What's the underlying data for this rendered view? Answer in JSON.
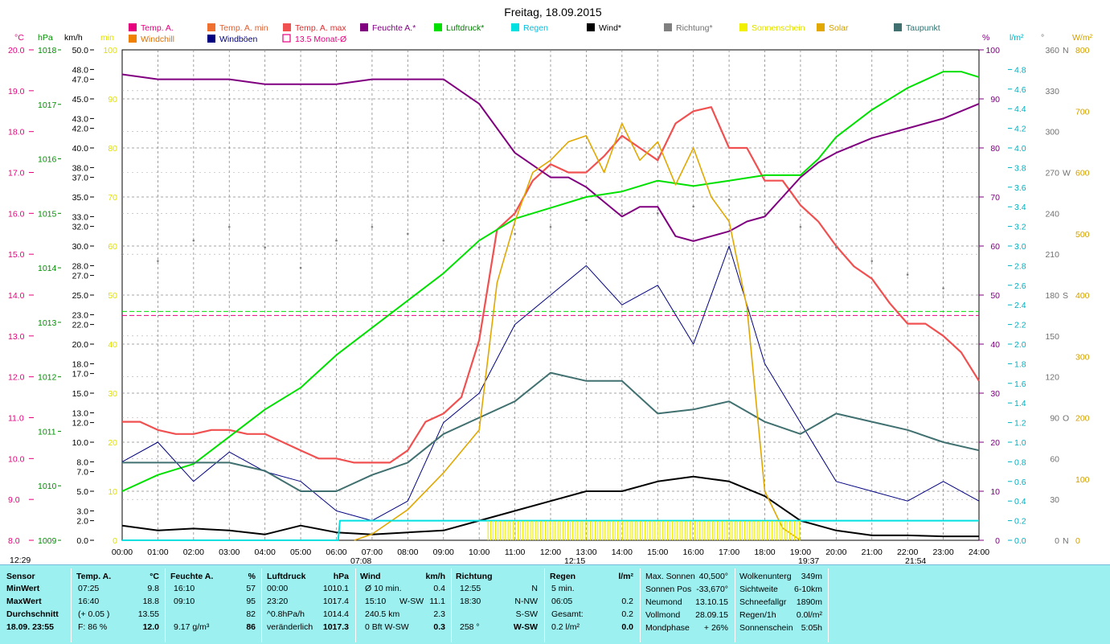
{
  "title": "Freitag, 18.09.2015",
  "legend": [
    {
      "label": "Temp. A.",
      "color": "#E6007E",
      "text_color": "#E6007E"
    },
    {
      "label": "Temp. A. min",
      "color": "#F07030",
      "text_color": "#E06030"
    },
    {
      "label": "Temp. A. max",
      "color": "#F05050",
      "text_color": "#E03030"
    },
    {
      "label": "Feuchte A.*",
      "color": "#800080",
      "text_color": "#800080"
    },
    {
      "label": "Luftdruck*",
      "color": "#00E000",
      "text_color": "#008000"
    },
    {
      "label": "Regen",
      "color": "#00E0E0",
      "text_color": "#00C0E0"
    },
    {
      "label": "Wind*",
      "color": "#000000",
      "text_color": "#000000"
    },
    {
      "label": "Richtung*",
      "color": "#808080",
      "text_color": "#707070"
    },
    {
      "label": "Sonnenschein",
      "color": "#F0F000",
      "text_color": "#E0E000"
    },
    {
      "label": "Solar",
      "color": "#E0A800",
      "text_color": "#D0A000"
    },
    {
      "label": "Taupunkt",
      "color": "#407070",
      "text_color": "#307070"
    },
    {
      "label": "Windchill",
      "color": "#F08000",
      "text_color": "#E07000"
    },
    {
      "label": "Windböen",
      "color": "#000080",
      "text_color": "#000080"
    },
    {
      "label": "13.5 Monat-Ø",
      "color": "#E6007E",
      "text_color": "#E6007E",
      "hollow": true
    }
  ],
  "axis_headers": {
    "temp": "°C",
    "pressure": "hPa",
    "wind": "km/h",
    "min": "min",
    "humidity": "%",
    "rain": "l/m²",
    "direction": "°",
    "solar": "W/m²"
  },
  "axes": {
    "temp_ticks": [
      "20.0",
      "19.0",
      "18.0",
      "17.0",
      "16.0",
      "15.0",
      "14.0",
      "13.0",
      "12.0",
      "11.0",
      "10.0",
      "9.0",
      "8.0"
    ],
    "pressure_ticks": [
      "1018",
      "1017",
      "1016",
      "1015",
      "1014",
      "1013",
      "1012",
      "1011",
      "1010",
      "1009"
    ],
    "wind_ticks": [
      {
        "v": 50.0,
        "l": "50.0"
      },
      {
        "v": 48.0,
        "l": "48.0"
      },
      {
        "v": 47.0,
        "l": "47.0"
      },
      {
        "v": 45.0,
        "l": "45.0"
      },
      {
        "v": 43.0,
        "l": "43.0"
      },
      {
        "v": 42.0,
        "l": "42.0"
      },
      {
        "v": 40.0,
        "l": "40.0"
      },
      {
        "v": 38.0,
        "l": "38.0"
      },
      {
        "v": 37.0,
        "l": "37.0"
      },
      {
        "v": 35.0,
        "l": "35.0"
      },
      {
        "v": 33.0,
        "l": "33.0"
      },
      {
        "v": 32.0,
        "l": "32.0"
      },
      {
        "v": 30.0,
        "l": "30.0"
      },
      {
        "v": 28.0,
        "l": "28.0"
      },
      {
        "v": 27.0,
        "l": "27.0"
      },
      {
        "v": 25.0,
        "l": "25.0"
      },
      {
        "v": 23.0,
        "l": "23.0"
      },
      {
        "v": 22.0,
        "l": "22.0"
      },
      {
        "v": 20.0,
        "l": "20.0"
      },
      {
        "v": 18.0,
        "l": "18.0"
      },
      {
        "v": 17.0,
        "l": "17.0"
      },
      {
        "v": 15.0,
        "l": "15.0"
      },
      {
        "v": 13.0,
        "l": "13.0"
      },
      {
        "v": 12.0,
        "l": "12.0"
      },
      {
        "v": 10.0,
        "l": "10.0"
      },
      {
        "v": 8.0,
        "l": "8.0"
      },
      {
        "v": 7.0,
        "l": "7.0"
      },
      {
        "v": 5.0,
        "l": "5.0"
      },
      {
        "v": 3.0,
        "l": "3.0"
      },
      {
        "v": 2.0,
        "l": "2.0"
      },
      {
        "v": 0.0,
        "l": "0.0"
      }
    ],
    "min_ticks": [
      "100",
      "90",
      "80",
      "70",
      "60",
      "50",
      "40",
      "30",
      "20",
      "10",
      "0"
    ],
    "humidity_ticks": [
      "100",
      "90",
      "80",
      "70",
      "60",
      "50",
      "40",
      "30",
      "20",
      "10",
      "0"
    ],
    "rain_ticks": [
      "4.8",
      "4.6",
      "4.4",
      "4.2",
      "4.0",
      "3.8",
      "3.6",
      "3.4",
      "3.2",
      "3.0",
      "2.8",
      "2.6",
      "2.4",
      "2.2",
      "2.0",
      "1.8",
      "1.6",
      "1.4",
      "1.2",
      "1.0",
      "0.8",
      "0.6",
      "0.4",
      "0.2",
      "0.0"
    ],
    "direction_ticks": [
      {
        "v": 360,
        "l": "360",
        "c": "N"
      },
      {
        "v": 330,
        "l": "330",
        "c": ""
      },
      {
        "v": 300,
        "l": "300",
        "c": ""
      },
      {
        "v": 270,
        "l": "270",
        "c": "W"
      },
      {
        "v": 240,
        "l": "240",
        "c": ""
      },
      {
        "v": 210,
        "l": "210",
        "c": ""
      },
      {
        "v": 180,
        "l": "180",
        "c": "S"
      },
      {
        "v": 150,
        "l": "150",
        "c": ""
      },
      {
        "v": 120,
        "l": "120",
        "c": ""
      },
      {
        "v": 90,
        "l": "90",
        "c": "O"
      },
      {
        "v": 60,
        "l": "60",
        "c": ""
      },
      {
        "v": 30,
        "l": "30",
        "c": ""
      },
      {
        "v": 0,
        "l": "0",
        "c": "N"
      }
    ],
    "solar_ticks": [
      "800",
      "700",
      "600",
      "500",
      "400",
      "300",
      "200",
      "100",
      "0"
    ],
    "time_ticks": [
      "00:00",
      "01:00",
      "02:00",
      "03:00",
      "04:00",
      "05:00",
      "06:00",
      "07:00",
      "08:00",
      "09:00",
      "10:00",
      "11:00",
      "12:00",
      "13:00",
      "14:00",
      "15:00",
      "16:00",
      "17:00",
      "18:00",
      "19:00",
      "20:00",
      "21:00",
      "22:00",
      "23:00",
      "24:00"
    ]
  },
  "sun_marks": {
    "left": "12:29",
    "sunrise": "07:08",
    "noon": "12:15",
    "sunset": "19:37",
    "moon": "21:54"
  },
  "chart_data": {
    "type": "line",
    "title": "Freitag, 18.09.2015",
    "x_range": [
      "00:00",
      "24:00"
    ],
    "ylim_temp": [
      8.0,
      20.0
    ],
    "ylim_pressure": [
      1009,
      1018
    ],
    "ylim_wind": [
      0,
      50
    ],
    "ylim_humidity": [
      0,
      100
    ],
    "ylim_rain": [
      0,
      5
    ],
    "ylim_direction": [
      0,
      360
    ],
    "ylim_solar": [
      0,
      800
    ],
    "grid": true,
    "monthly_avg_temp": 13.5,
    "monthly_avg_pressure": 1013.2,
    "series": [
      {
        "name": "Temp. A.",
        "axis": "temp",
        "x": [
          0,
          0.5,
          1,
          1.5,
          2,
          2.5,
          3,
          3.5,
          4,
          4.5,
          5,
          5.5,
          6,
          6.5,
          7,
          7.5,
          8,
          8.5,
          9,
          9.5,
          10,
          10.5,
          11,
          11.5,
          12,
          12.5,
          13,
          13.5,
          14,
          14.5,
          15,
          15.5,
          16,
          16.5,
          17,
          17.5,
          18,
          18.5,
          19,
          19.5,
          20,
          20.5,
          21,
          21.5,
          22,
          22.5,
          23,
          23.5,
          24
        ],
        "values": [
          10.9,
          10.9,
          10.7,
          10.6,
          10.6,
          10.7,
          10.7,
          10.6,
          10.6,
          10.4,
          10.2,
          10.0,
          10.0,
          9.9,
          9.9,
          9.9,
          10.2,
          10.9,
          11.1,
          11.5,
          12.9,
          15.6,
          16.0,
          16.8,
          17.2,
          17.0,
          17.0,
          17.4,
          17.9,
          17.6,
          17.3,
          18.2,
          18.5,
          18.6,
          17.6,
          17.6,
          16.8,
          16.8,
          16.2,
          15.8,
          15.2,
          14.7,
          14.4,
          13.8,
          13.3,
          13.3,
          13.0,
          12.6,
          11.9
        ]
      },
      {
        "name": "Feuchte A.*",
        "axis": "humidity",
        "x": [
          0,
          1,
          2,
          3,
          4,
          5,
          6,
          7,
          8,
          9,
          10,
          11,
          12,
          12.5,
          13,
          13.5,
          14,
          14.5,
          15,
          15.5,
          16,
          16.5,
          17,
          17.5,
          18,
          18.5,
          19,
          19.5,
          20,
          21,
          22,
          23,
          24
        ],
        "values": [
          95,
          94,
          94,
          94,
          93,
          93,
          93,
          94,
          94,
          94,
          89,
          79,
          74,
          74,
          72,
          69,
          66,
          68,
          68,
          62,
          61,
          62,
          63,
          65,
          66,
          70,
          74,
          77,
          79,
          82,
          84,
          86,
          89
        ]
      },
      {
        "name": "Luftdruck*",
        "axis": "pressure",
        "x": [
          0,
          1,
          2,
          3,
          4,
          5,
          6,
          7,
          8,
          9,
          10,
          11,
          12,
          13,
          14,
          15,
          16,
          17,
          18,
          19,
          19.5,
          20,
          21,
          22,
          23,
          23.5,
          24
        ],
        "values": [
          1009.9,
          1010.2,
          1010.4,
          1010.9,
          1011.4,
          1011.8,
          1012.4,
          1012.9,
          1013.4,
          1013.9,
          1014.5,
          1014.9,
          1015.1,
          1015.3,
          1015.4,
          1015.6,
          1015.5,
          1015.6,
          1015.7,
          1015.7,
          1016.0,
          1016.4,
          1016.9,
          1017.3,
          1017.6,
          1017.6,
          1017.5
        ]
      },
      {
        "name": "Wind*",
        "axis": "wind",
        "x": [
          0,
          1,
          2,
          3,
          4,
          5,
          6,
          7,
          8,
          9,
          10,
          11,
          12,
          13,
          14,
          15,
          16,
          17,
          18,
          19,
          20,
          21,
          22,
          23,
          24
        ],
        "values": [
          1.5,
          1.0,
          1.2,
          1.0,
          0.6,
          1.5,
          0.8,
          0.6,
          0.8,
          1.0,
          2.0,
          3.0,
          4.0,
          5.0,
          5.0,
          6.0,
          6.5,
          6.0,
          4.5,
          2.0,
          1.0,
          0.5,
          0.5,
          0.4,
          0.4
        ]
      },
      {
        "name": "Windböen",
        "axis": "wind",
        "x": [
          0,
          1,
          2,
          3,
          4,
          5,
          6,
          7,
          8,
          9,
          10,
          11,
          12,
          13,
          14,
          15,
          16,
          17,
          18,
          19,
          20,
          21,
          22,
          23,
          24
        ],
        "values": [
          8,
          10,
          6,
          9,
          7,
          6,
          3,
          2,
          4,
          12,
          15,
          22,
          25,
          28,
          24,
          26,
          20,
          30,
          18,
          12,
          6,
          5,
          4,
          6,
          4
        ]
      },
      {
        "name": "Taupunkt",
        "axis": "temp",
        "x": [
          0,
          1,
          2,
          3,
          4,
          5,
          6,
          7,
          8,
          9,
          10,
          11,
          12,
          13,
          14,
          15,
          16,
          17,
          18,
          19,
          20,
          21,
          22,
          23,
          24
        ],
        "values": [
          9.9,
          9.9,
          9.9,
          9.9,
          9.7,
          9.2,
          9.2,
          9.6,
          9.9,
          10.6,
          11.0,
          11.4,
          12.1,
          11.9,
          11.9,
          11.1,
          11.2,
          11.4,
          10.9,
          10.6,
          11.1,
          10.9,
          10.7,
          10.4,
          10.2
        ]
      },
      {
        "name": "Solar",
        "axis": "solar",
        "x": [
          6.5,
          7,
          8,
          9,
          10,
          10.5,
          11,
          11.5,
          12,
          12.5,
          13,
          13.5,
          14,
          14.5,
          15,
          15.5,
          16,
          16.5,
          17,
          17.5,
          18,
          18.5,
          19
        ],
        "values": [
          0,
          10,
          50,
          110,
          180,
          420,
          520,
          600,
          620,
          650,
          660,
          600,
          680,
          620,
          650,
          580,
          640,
          560,
          520,
          380,
          80,
          20,
          0
        ]
      },
      {
        "name": "Regen",
        "axis": "rain",
        "x": [
          0,
          6.05,
          6.1,
          24
        ],
        "values": [
          0,
          0,
          0.2,
          0.2
        ]
      },
      {
        "name": "Richtung*",
        "axis": "direction",
        "x": [
          0,
          1,
          2,
          3,
          4,
          5,
          6,
          7,
          8,
          9,
          10,
          11,
          12,
          13,
          14,
          15,
          16,
          17,
          18,
          19,
          20,
          21,
          22,
          23,
          24
        ],
        "values": [
          210,
          205,
          220,
          230,
          215,
          200,
          220,
          230,
          225,
          220,
          215,
          225,
          230,
          235,
          240,
          240,
          245,
          250,
          240,
          230,
          215,
          205,
          195,
          185,
          215
        ]
      },
      {
        "name": "Sonnenschein",
        "axis": "min",
        "x": [
          10.25,
          19.0
        ],
        "values": [
          4,
          4
        ]
      }
    ]
  },
  "bottom_panel": {
    "sensor": {
      "header": "Sensor",
      "rows": [
        "MinWert",
        "MaxWert",
        "Durchschnitt",
        "18.09. 23:55"
      ]
    },
    "temp": {
      "header": "Temp. A.",
      "unit": "°C",
      "rows": [
        [
          "07:25",
          "9.8"
        ],
        [
          "16:40",
          "18.8"
        ],
        [
          "(+ 0.05 )",
          "13.55"
        ],
        [
          "F: 86 %",
          "12.0"
        ]
      ]
    },
    "humidity": {
      "header": "Feuchte A.",
      "unit": "%",
      "rows": [
        [
          "16:10",
          "57"
        ],
        [
          "09:10",
          "95"
        ],
        [
          "",
          "82"
        ],
        [
          "9.17 g/m³",
          "86"
        ]
      ]
    },
    "pressure": {
      "header": "Luftdruck",
      "unit": "hPa",
      "rows": [
        [
          "00:00",
          "1010.1"
        ],
        [
          "23:20",
          "1017.4"
        ],
        [
          "^0.8hPa/h",
          "1014.4"
        ],
        [
          "veränderlich",
          "1017.3"
        ]
      ]
    },
    "wind": {
      "header": "Wind",
      "unit": "km/h",
      "rows": [
        [
          "Ø 10 min.",
          "",
          "0.4"
        ],
        [
          "15:10",
          "W-SW",
          "11.1"
        ],
        [
          "240.5 km",
          "",
          "2.3"
        ],
        [
          "0 Bft W-SW",
          "",
          "0.3"
        ]
      ]
    },
    "direction": {
      "header": "Richtung",
      "rows": [
        [
          "12:55",
          "N"
        ],
        [
          "18:30",
          "N-NW"
        ],
        [
          "",
          "S-SW"
        ],
        [
          "258 °",
          "W-SW"
        ]
      ]
    },
    "rain": {
      "header": "Regen",
      "unit": "l/m²",
      "rows": [
        [
          "5 min.",
          ""
        ],
        [
          "06:05",
          "0.2"
        ],
        [
          "Gesamt:",
          "0.2"
        ],
        [
          "0.2 l/m²",
          "0.0"
        ]
      ]
    },
    "sun": {
      "rows": [
        [
          "Max. Sonnen",
          "40,500°"
        ],
        [
          "Sonnen Pos",
          "-33,670°"
        ],
        [
          "Neumond",
          "13.10.15"
        ],
        [
          "Vollmond",
          "28.09.15"
        ],
        [
          "Mondphase",
          "+ 26%"
        ]
      ]
    },
    "misc": {
      "rows": [
        [
          "Wolkenunterg",
          "349m"
        ],
        [
          "Sichtweite",
          "6-10km"
        ],
        [
          "Schneefallgr",
          "1890m"
        ],
        [
          "Regen/1h",
          "0.0l/m²"
        ],
        [
          "Sonnenschein",
          "5:05h"
        ]
      ]
    }
  }
}
